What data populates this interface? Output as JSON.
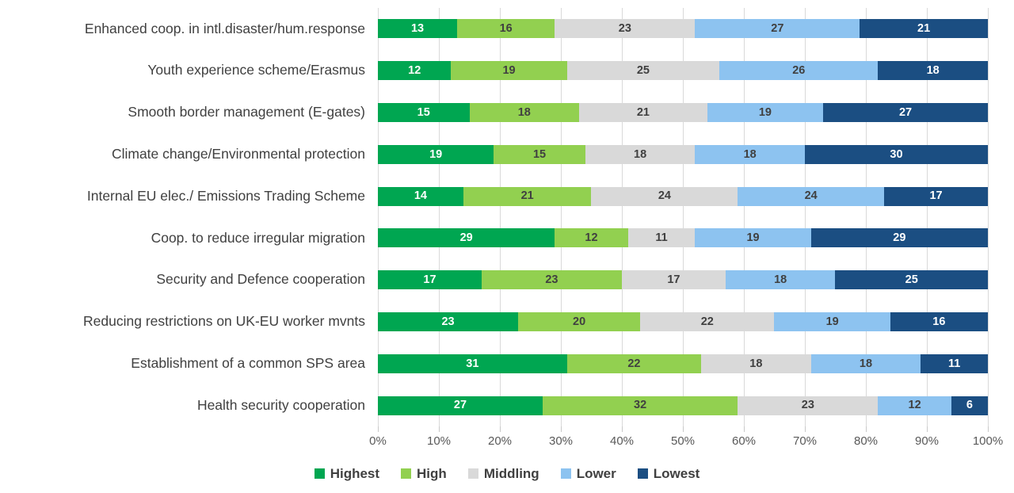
{
  "styles": {
    "background": "#FFFFFF",
    "gridline_color": "#D9D9D9",
    "tick_color": "#C9C9C9",
    "axis_text_color": "#595959",
    "category_text_color": "#404040",
    "legend_text_color": "#404040"
  },
  "chart_data": {
    "type": "bar",
    "orientation": "horizontal",
    "stacked": true,
    "title": "",
    "xlabel": "",
    "ylabel": "",
    "xlim": [
      0,
      100
    ],
    "grid": true,
    "legend_position": "bottom",
    "categories": [
      "Enhanced coop. in intl.disaster/hum.response",
      "Youth experience scheme/Erasmus",
      "Smooth border management (E-gates)",
      "Climate change/Environmental protection",
      "Internal EU elec./ Emissions Trading Scheme",
      "Coop. to reduce irregular migration",
      "Security and Defence cooperation",
      "Reducing restrictions on UK-EU worker mvnts",
      "Establishment of a common SPS area",
      "Health security cooperation"
    ],
    "series": [
      {
        "name": "Highest",
        "color": "#00A651",
        "label_color": "#FFFFFF",
        "values": [
          13,
          12,
          15,
          19,
          14,
          29,
          17,
          23,
          31,
          27
        ]
      },
      {
        "name": "High",
        "color": "#92D050",
        "label_color": "#404040",
        "values": [
          16,
          19,
          18,
          15,
          21,
          12,
          23,
          20,
          22,
          32
        ]
      },
      {
        "name": "Middling",
        "color": "#D9D9D9",
        "label_color": "#404040",
        "values": [
          23,
          25,
          21,
          18,
          24,
          11,
          17,
          22,
          18,
          23
        ]
      },
      {
        "name": "Lower",
        "color": "#8DC3F0",
        "label_color": "#404040",
        "values": [
          27,
          26,
          19,
          18,
          24,
          19,
          18,
          19,
          18,
          12
        ]
      },
      {
        "name": "Lowest",
        "color": "#1B4E82",
        "label_color": "#FFFFFF",
        "values": [
          21,
          18,
          27,
          30,
          17,
          29,
          25,
          16,
          11,
          6
        ]
      }
    ],
    "x_ticks": [
      "0%",
      "10%",
      "20%",
      "30%",
      "40%",
      "50%",
      "60%",
      "70%",
      "80%",
      "90%",
      "100%"
    ]
  }
}
